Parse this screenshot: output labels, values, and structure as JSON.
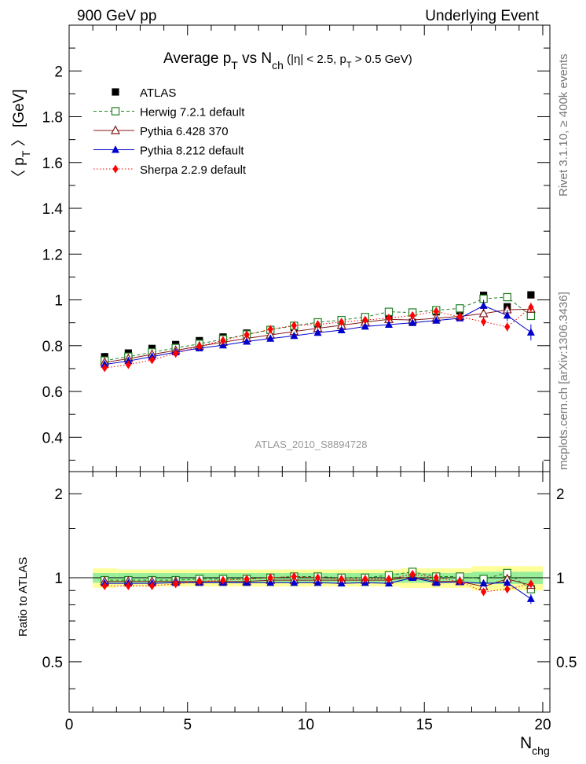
{
  "header": {
    "left": "900 GeV pp",
    "right": "Underlying Event"
  },
  "side_labels": {
    "rivet": "Rivet 3.1.10, ≥ 400k events",
    "mcplots": "mcplots.cern.ch [arXiv:1306.3436]"
  },
  "chart_data": {
    "type": "scatter",
    "title": {
      "main": "Average p",
      "sub_T": "T",
      "vs": " vs N",
      "sub_ch": "ch",
      "cuts_a": " (|η| < 2.5, p",
      "cuts_T": "T",
      "cuts_b": " > 0.5 GeV)"
    },
    "watermark": "ATLAS_2010_S8894728",
    "xlabel": {
      "main": "N",
      "sub": "chg"
    },
    "ylabel": {
      "a": "〈 p",
      "sub": "T",
      "b": " 〉 [GeV]"
    },
    "ratio_ylabel": "Ratio to ATLAS",
    "xlim": [
      0,
      20.3
    ],
    "ylim": [
      0.25,
      2.2
    ],
    "ratio_ylim": [
      0.33,
      2.4
    ],
    "x_ticks": [
      0,
      5,
      10,
      15,
      20
    ],
    "x_tick_labels": [
      "0",
      "5",
      "10",
      "15",
      "20"
    ],
    "y_ticks": [
      0.4,
      0.6,
      0.8,
      1,
      1.2,
      1.4,
      1.6,
      1.8,
      2
    ],
    "y_tick_labels": [
      "0.4",
      "0.6",
      "0.8",
      "1",
      "1.2",
      "1.4",
      "1.6",
      "1.8",
      "2"
    ],
    "ratio_ticks": [
      0.5,
      1,
      2
    ],
    "ratio_tick_labels": [
      "0.5",
      "1",
      "2"
    ],
    "x": [
      1.5,
      2.5,
      3.5,
      4.5,
      5.5,
      6.5,
      7.5,
      8.5,
      9.5,
      10.5,
      11.5,
      12.5,
      13.5,
      14.5,
      15.5,
      16.5,
      17.5,
      18.5,
      19.5
    ],
    "ratio_band_inner": [
      0.04,
      0.04,
      0.04,
      0.04,
      0.04,
      0.04,
      0.04,
      0.04,
      0.04,
      0.04,
      0.04,
      0.04,
      0.04,
      0.04,
      0.04,
      0.04,
      0.05,
      0.05,
      0.05
    ],
    "ratio_band_outer": [
      0.08,
      0.07,
      0.07,
      0.07,
      0.07,
      0.07,
      0.07,
      0.07,
      0.07,
      0.07,
      0.07,
      0.07,
      0.07,
      0.08,
      0.08,
      0.08,
      0.1,
      0.1,
      0.1
    ],
    "series": [
      {
        "name": "ATLAS",
        "marker": "square-filled",
        "color": "#000000",
        "line": "none",
        "values": [
          0.752,
          0.768,
          0.788,
          0.805,
          0.822,
          0.838,
          0.855,
          0.868,
          0.88,
          0.895,
          0.909,
          0.921,
          0.932,
          0.902,
          0.948,
          0.952,
          1.02,
          0.97,
          1.022
        ],
        "ratio": [
          1,
          1,
          1,
          1,
          1,
          1,
          1,
          1,
          1,
          1,
          1,
          1,
          1,
          1,
          1,
          1,
          1,
          1,
          1
        ]
      },
      {
        "name": "Herwig 7.2.1 default",
        "marker": "square-open",
        "color": "#208020",
        "line": "dashed",
        "values": [
          0.735,
          0.752,
          0.771,
          0.79,
          0.808,
          0.828,
          0.849,
          0.869,
          0.887,
          0.902,
          0.912,
          0.925,
          0.948,
          0.945,
          0.955,
          0.963,
          1.005,
          1.012,
          0.93
        ],
        "ratio": [
          0.98,
          0.98,
          0.98,
          0.98,
          0.99,
          0.99,
          0.99,
          1.0,
          1.01,
          1.01,
          1.0,
          1.0,
          1.02,
          1.05,
          1.01,
          1.01,
          0.99,
          1.04,
          0.91
        ]
      },
      {
        "name": "Pythia 6.428 370",
        "marker": "triangle-open",
        "color": "#801818",
        "line": "solid",
        "values": [
          0.727,
          0.743,
          0.762,
          0.779,
          0.798,
          0.815,
          0.832,
          0.847,
          0.862,
          0.876,
          0.889,
          0.903,
          0.915,
          0.912,
          0.92,
          0.928,
          0.94,
          0.957,
          0.96
        ],
        "ratio": [
          0.97,
          0.97,
          0.97,
          0.97,
          0.97,
          0.97,
          0.97,
          0.98,
          0.98,
          0.98,
          0.98,
          0.98,
          0.98,
          1.01,
          0.97,
          0.97,
          0.93,
          0.99,
          0.94
        ]
      },
      {
        "name": "Pythia 8.212 default",
        "marker": "triangle-filled",
        "color": "#0000cc",
        "line": "solid",
        "values": [
          0.718,
          0.733,
          0.752,
          0.772,
          0.789,
          0.802,
          0.818,
          0.831,
          0.843,
          0.857,
          0.868,
          0.884,
          0.892,
          0.9,
          0.91,
          0.92,
          0.975,
          0.932,
          0.858
        ],
        "ratio": [
          0.955,
          0.955,
          0.955,
          0.96,
          0.96,
          0.96,
          0.96,
          0.96,
          0.96,
          0.96,
          0.955,
          0.96,
          0.955,
          1.0,
          0.96,
          0.965,
          0.955,
          0.96,
          0.84
        ]
      },
      {
        "name": "Sherpa 2.2.9 default",
        "marker": "diamond-filled",
        "color": "#ff0000",
        "line": "dotted",
        "values": [
          0.703,
          0.717,
          0.738,
          0.766,
          0.797,
          0.823,
          0.848,
          0.872,
          0.888,
          0.893,
          0.903,
          0.912,
          0.921,
          0.932,
          0.95,
          0.925,
          0.905,
          0.882,
          0.968
        ],
        "ratio": [
          0.935,
          0.935,
          0.935,
          0.95,
          0.97,
          0.98,
          0.99,
          1.0,
          1.01,
          1.0,
          0.99,
          0.99,
          0.99,
          1.03,
          1.0,
          0.97,
          0.89,
          0.91,
          0.95
        ]
      }
    ],
    "error_bars": {
      "Pythia 8.212 default": [
        0,
        0,
        0,
        0,
        0,
        0,
        0,
        0,
        0,
        0,
        0,
        0,
        0,
        0,
        0,
        0,
        0.025,
        0.025,
        0.035
      ],
      "Sherpa 2.2.9 default": [
        0,
        0,
        0,
        0,
        0,
        0,
        0,
        0,
        0,
        0,
        0,
        0,
        0,
        0,
        0,
        0,
        0.02,
        0.02,
        0.02
      ]
    }
  }
}
